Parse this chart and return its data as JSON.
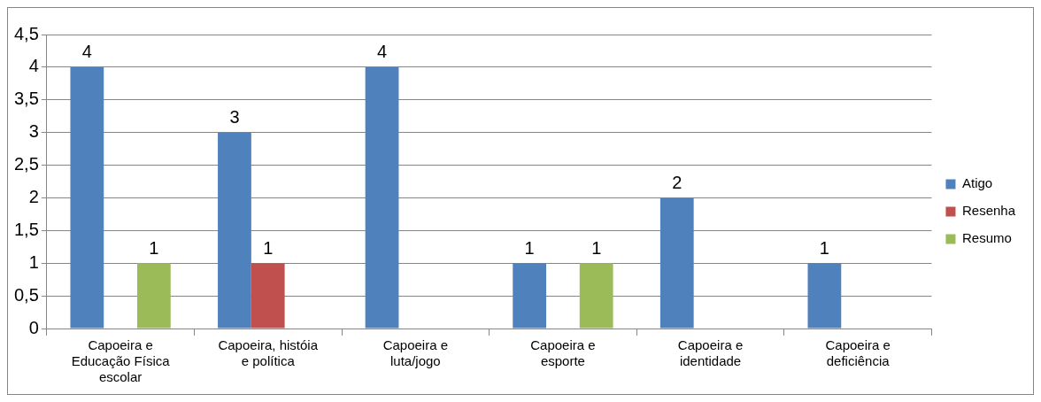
{
  "chart_data": {
    "type": "bar",
    "categories": [
      "Capoeira e Educação Física escolar",
      "Capoeira, históia e política",
      "Capoeira e luta/jogo",
      "Capoeira e esporte",
      "Capoeira e identidade",
      "Capoeira e deficiência"
    ],
    "series": [
      {
        "name": "Atigo",
        "color": "#4f81bd",
        "values": [
          4,
          3,
          4,
          1,
          2,
          1
        ]
      },
      {
        "name": "Resenha",
        "color": "#c0504d",
        "values": [
          null,
          1,
          null,
          null,
          null,
          null
        ]
      },
      {
        "name": "Resumo",
        "color": "#9bbb59",
        "values": [
          1,
          null,
          null,
          1,
          null,
          null
        ]
      }
    ],
    "ylim": [
      0,
      4.5
    ],
    "yticks": [
      0,
      {
        "value": 0.5,
        "label": "0,5"
      },
      1,
      {
        "value": 1.5,
        "label": "1,5"
      },
      2,
      {
        "value": 2.5,
        "label": "2,5"
      },
      3,
      {
        "value": 3.5,
        "label": "3,5"
      },
      4,
      {
        "value": 4.5,
        "label": "4,5"
      }
    ],
    "grid": "y",
    "legend": "right",
    "data_labels": true
  }
}
